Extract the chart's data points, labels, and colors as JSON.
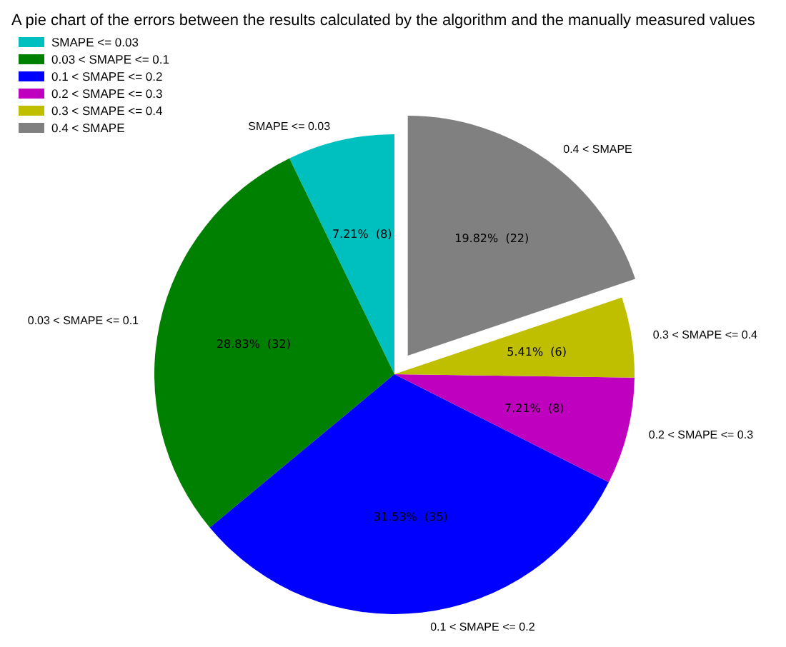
{
  "chart_data": {
    "type": "pie",
    "title": "A pie chart of the errors between the results calculated by the algorithm and the manually measured values",
    "categories": [
      "SMAPE <= 0.03",
      "0.03 < SMAPE <= 0.1",
      "0.1 < SMAPE <= 0.2",
      "0.2 < SMAPE <= 0.3",
      "0.3 < SMAPE <= 0.4",
      "0.4 < SMAPE"
    ],
    "values": [
      8,
      32,
      35,
      8,
      6,
      22
    ],
    "colors": [
      "#00bfbf",
      "#008000",
      "#0000ff",
      "#bf00bf",
      "#bfbf00",
      "#808080"
    ],
    "value_labels": [
      "7.21%  (8)",
      "28.83%  (32)",
      "31.53%  (35)",
      "7.21%  (8)",
      "5.41%  (6)",
      "19.82%  (22)"
    ],
    "legend": "top left"
  }
}
